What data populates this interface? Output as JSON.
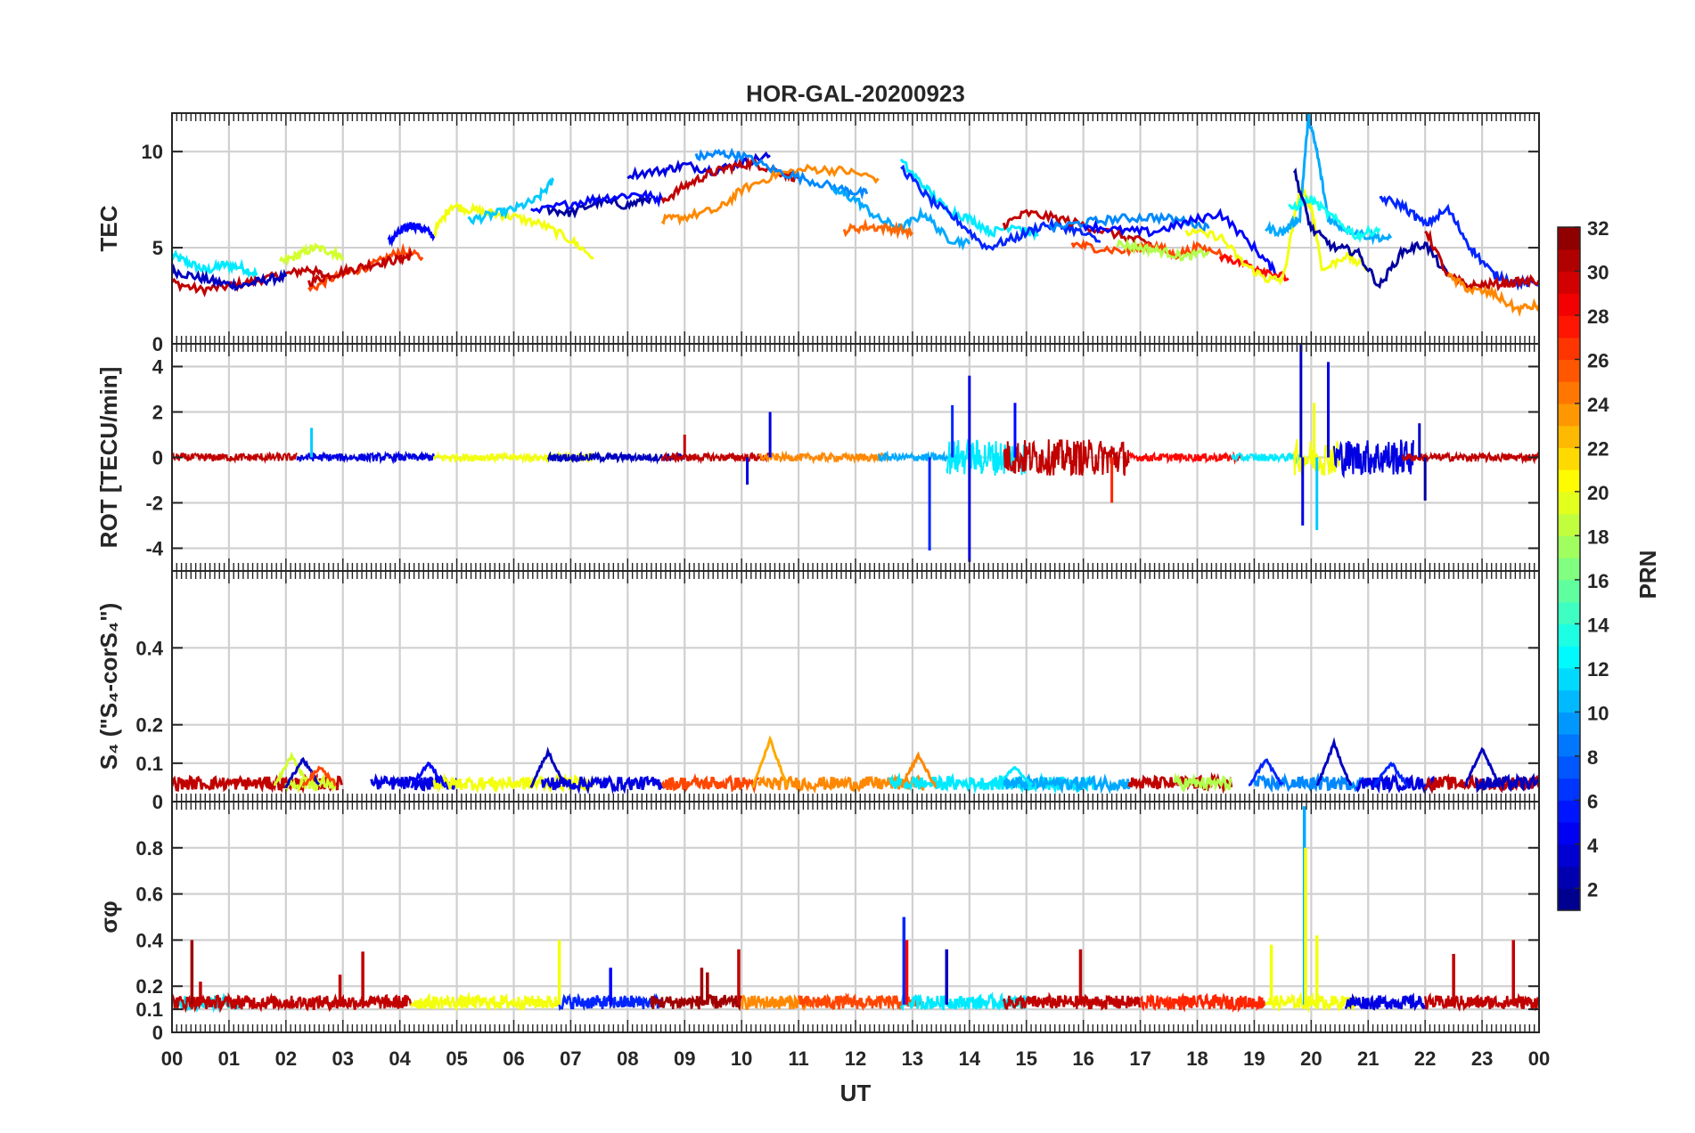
{
  "chart_data": {
    "type": "line",
    "title": "HOR-GAL-20200923",
    "xlabel": "UT",
    "xlim": [
      0,
      24
    ],
    "x_tick_labels": [
      "00",
      "01",
      "02",
      "03",
      "04",
      "05",
      "06",
      "07",
      "08",
      "09",
      "10",
      "11",
      "12",
      "13",
      "14",
      "15",
      "16",
      "17",
      "18",
      "19",
      "20",
      "21",
      "22",
      "23",
      "00"
    ],
    "grid": true,
    "colorbar": {
      "label": "PRN",
      "colormap": "jet",
      "clim": [
        1,
        32
      ],
      "ticks": [
        "2",
        "4",
        "6",
        "8",
        "10",
        "12",
        "14",
        "16",
        "18",
        "20",
        "22",
        "24",
        "26",
        "28",
        "30",
        "32"
      ]
    },
    "panels": [
      {
        "ylabel": "TEC",
        "ylim": [
          0,
          12
        ],
        "yticks": [
          "0",
          "5",
          "10"
        ],
        "ytick_values": [
          0,
          5,
          10
        ],
        "series": [
          {
            "prn": 12,
            "x": [
              0,
              0.3,
              0.6,
              0.9,
              1.2,
              1.5
            ],
            "y": [
              4.6,
              4.2,
              3.8,
              4.1,
              4.0,
              3.6
            ]
          },
          {
            "prn": 30,
            "x": [
              0,
              0.5,
              1,
              1.5,
              2,
              2.4,
              2.7
            ],
            "y": [
              3.2,
              2.8,
              3.0,
              3.3,
              3.6,
              3.9,
              3.5
            ]
          },
          {
            "prn": 3,
            "x": [
              0,
              0.4,
              0.8,
              1.2,
              1.6,
              2.0
            ],
            "y": [
              3.8,
              3.5,
              3.2,
              3.0,
              3.3,
              3.5
            ]
          },
          {
            "prn": 19,
            "x": [
              1.9,
              2.2,
              2.5,
              2.8,
              3.0
            ],
            "y": [
              4.2,
              4.6,
              5.0,
              4.8,
              4.5
            ]
          },
          {
            "prn": 26,
            "x": [
              2.4,
              2.8,
              3.2,
              3.6,
              4.0,
              4.4
            ],
            "y": [
              2.8,
              3.4,
              3.8,
              4.2,
              4.8,
              4.5
            ]
          },
          {
            "prn": 30,
            "x": [
              2.4,
              2.8,
              3.2,
              3.6,
              4.0,
              4.2
            ],
            "y": [
              3.2,
              3.6,
              3.9,
              4.2,
              4.4,
              4.6
            ]
          },
          {
            "prn": 5,
            "x": [
              3.8,
              4.0,
              4.2,
              4.4,
              4.6
            ],
            "y": [
              5.3,
              5.8,
              6.2,
              6.0,
              5.6
            ]
          },
          {
            "prn": 20,
            "x": [
              4.6,
              4.9,
              5.2,
              5.6,
              6.0,
              6.5,
              7.0,
              7.4
            ],
            "y": [
              5.8,
              7.2,
              7.0,
              6.8,
              6.6,
              6.2,
              5.4,
              4.5
            ]
          },
          {
            "prn": 11,
            "x": [
              5.2,
              5.6,
              6.0,
              6.4,
              6.7
            ],
            "y": [
              6.4,
              6.7,
              7.0,
              7.5,
              8.5
            ]
          },
          {
            "prn": 2,
            "x": [
              6.6,
              7.0,
              7.5,
              8.0,
              8.4
            ],
            "y": [
              7.0,
              6.8,
              7.4,
              7.2,
              7.6
            ]
          },
          {
            "prn": 5,
            "x": [
              6.3,
              7.0,
              7.6,
              8.2,
              8.6
            ],
            "y": [
              6.8,
              7.3,
              7.6,
              7.8,
              7.5
            ]
          },
          {
            "prn": 4,
            "x": [
              8.0,
              8.6,
              9.0,
              9.5,
              10.0,
              10.5
            ],
            "y": [
              8.8,
              9.0,
              9.3,
              9.0,
              9.4,
              9.8
            ]
          },
          {
            "prn": 30,
            "x": [
              8.6,
              9.0,
              9.4,
              9.8,
              10.2,
              10.6,
              11.0
            ],
            "y": [
              7.4,
              8.2,
              8.8,
              9.2,
              9.4,
              9.0,
              8.6
            ]
          },
          {
            "prn": 24,
            "x": [
              8.6,
              9.0,
              9.6,
              10.0,
              10.6,
              11.2,
              11.8,
              12.4
            ],
            "y": [
              6.4,
              6.6,
              7.0,
              8.0,
              8.8,
              9.1,
              9.0,
              8.6
            ]
          },
          {
            "prn": 9,
            "x": [
              9.2,
              9.6,
              10.0,
              10.6,
              11.2,
              11.8,
              12.2
            ],
            "y": [
              9.7,
              9.9,
              9.8,
              9.0,
              8.5,
              8.0,
              7.8
            ]
          },
          {
            "prn": 10,
            "x": [
              11.6,
              12.0,
              12.4,
              12.8,
              13.2,
              13.6,
              14.0
            ],
            "y": [
              8.0,
              7.5,
              6.5,
              6.0,
              6.8,
              5.5,
              5.2
            ]
          },
          {
            "prn": 25,
            "x": [
              11.8,
              12.2,
              12.6,
              13.0
            ],
            "y": [
              5.9,
              6.1,
              6.0,
              5.8
            ]
          },
          {
            "prn": 12,
            "x": [
              12.8,
              13.2,
              13.6,
              14.0,
              14.4,
              14.8,
              15.2
            ],
            "y": [
              9.5,
              8.2,
              7.0,
              6.5,
              5.8,
              6.2,
              5.6
            ]
          },
          {
            "prn": 6,
            "x": [
              12.8,
              13.3,
              13.8,
              14.3,
              14.8,
              15.3,
              15.8,
              16.3
            ],
            "y": [
              9.2,
              7.5,
              6.4,
              5.0,
              5.5,
              6.2,
              6.0,
              5.3
            ]
          },
          {
            "prn": 30,
            "x": [
              14.6,
              15.0,
              15.6,
              16.2,
              16.8,
              17.2
            ],
            "y": [
              6.2,
              6.8,
              6.5,
              6.0,
              5.5,
              5.2
            ]
          },
          {
            "prn": 26,
            "x": [
              15.8,
              16.2,
              16.8,
              17.2,
              17.6,
              18.0,
              18.6
            ],
            "y": [
              5.2,
              5.0,
              4.8,
              5.2,
              4.6,
              5.0,
              4.6
            ]
          },
          {
            "prn": 18,
            "x": [
              16.6,
              17.0,
              17.4,
              17.8,
              18.2
            ],
            "y": [
              5.2,
              5.0,
              4.8,
              4.5,
              4.8
            ]
          },
          {
            "prn": 9,
            "x": [
              15.4,
              16.0,
              16.6,
              17.2,
              17.8,
              18.2
            ],
            "y": [
              6.0,
              6.3,
              6.5,
              6.6,
              6.4,
              6.0
            ]
          },
          {
            "prn": 5,
            "x": [
              16.0,
              16.6,
              17.2,
              17.8,
              18.4,
              19.0,
              19.4
            ],
            "y": [
              6.2,
              5.9,
              5.8,
              6.3,
              6.8,
              5.0,
              3.6
            ]
          },
          {
            "prn": 28,
            "x": [
              18.4,
              18.8,
              19.2,
              19.6
            ],
            "y": [
              4.6,
              4.2,
              3.8,
              3.4
            ]
          },
          {
            "prn": 20,
            "x": [
              17.8,
              18.4,
              18.8,
              19.2,
              19.5,
              19.8,
              20.0,
              20.2,
              20.6,
              21.0
            ],
            "y": [
              5.8,
              5.6,
              4.2,
              3.4,
              3.3,
              8.0,
              7.2,
              3.8,
              4.6,
              3.9
            ]
          },
          {
            "prn": 10,
            "x": [
              19.2,
              19.5,
              19.8,
              19.95,
              20.1,
              20.3,
              20.6,
              21.0,
              21.4
            ],
            "y": [
              6.0,
              5.8,
              6.6,
              11.8,
              10.0,
              6.5,
              6.0,
              5.6,
              5.5
            ]
          },
          {
            "prn": 13,
            "x": [
              19.6,
              20.0,
              20.4,
              20.8,
              21.2
            ],
            "y": [
              7.0,
              7.5,
              6.5,
              5.6,
              6.0
            ]
          },
          {
            "prn": 2,
            "x": [
              19.7,
              20.0,
              20.4,
              20.8,
              21.2,
              21.6,
              22.0,
              22.4
            ],
            "y": [
              9.0,
              6.0,
              5.0,
              4.8,
              3.0,
              4.8,
              5.2,
              3.5
            ]
          },
          {
            "prn": 6,
            "x": [
              21.2,
              21.6,
              22.0,
              22.4,
              22.8,
              23.2,
              23.6,
              24.0
            ],
            "y": [
              7.6,
              7.2,
              6.2,
              7.0,
              5.0,
              3.6,
              3.2,
              3.1
            ]
          },
          {
            "prn": 30,
            "x": [
              22.0,
              22.4,
              22.8,
              23.2,
              23.6,
              24.0
            ],
            "y": [
              6.0,
              3.5,
              3.0,
              3.1,
              3.2,
              3.3
            ]
          },
          {
            "prn": 24,
            "x": [
              22.4,
              22.8,
              23.2,
              23.6,
              24.0
            ],
            "y": [
              3.5,
              2.8,
              2.6,
              1.8,
              2.0
            ]
          }
        ]
      },
      {
        "ylabel": "ROT [TECU/min]",
        "ylim": [
          -5,
          5
        ],
        "yticks": [
          "-4",
          "-2",
          "0",
          "2",
          "4"
        ],
        "ytick_values": [
          -4,
          -2,
          0,
          2,
          4
        ],
        "spikes": [
          {
            "prn": 11,
            "x": 2.45,
            "y": 1.3
          },
          {
            "prn": 30,
            "x": 9.0,
            "y": 1.0
          },
          {
            "prn": 4,
            "x": 10.5,
            "y": 2.0
          },
          {
            "prn": 4,
            "x": 10.1,
            "y": -1.2
          },
          {
            "prn": 6,
            "x": 13.3,
            "y": -4.1
          },
          {
            "prn": 6,
            "x": 13.7,
            "y": 2.3
          },
          {
            "prn": 4,
            "x": 14.0,
            "y": -4.6
          },
          {
            "prn": 4,
            "x": 14.0,
            "y": 3.6
          },
          {
            "prn": 5,
            "x": 14.8,
            "y": 2.4
          },
          {
            "prn": 27,
            "x": 16.5,
            "y": -2.0
          },
          {
            "prn": 3,
            "x": 19.82,
            "y": 5.0
          },
          {
            "prn": 4,
            "x": 19.85,
            "y": -3.0
          },
          {
            "prn": 4,
            "x": 20.3,
            "y": 4.2
          },
          {
            "prn": 11,
            "x": 20.1,
            "y": -3.2
          },
          {
            "prn": 20,
            "x": 20.05,
            "y": 2.4
          },
          {
            "prn": 3,
            "x": 21.9,
            "y": 1.5
          },
          {
            "prn": 2,
            "x": 22.0,
            "y": -1.9
          }
        ]
      },
      {
        "ylabel": "S₄ (\"S₄-corS₄\")",
        "ylim": [
          0,
          0.6
        ],
        "yticks": [
          "0",
          "0.1",
          "0.2",
          "0.4"
        ],
        "ytick_values": [
          0,
          0.1,
          0.2,
          0.4
        ],
        "bumps": [
          {
            "prn": 19,
            "x": 2.1,
            "y": 0.12
          },
          {
            "prn": 3,
            "x": 2.3,
            "y": 0.11
          },
          {
            "prn": 26,
            "x": 2.6,
            "y": 0.09
          },
          {
            "prn": 5,
            "x": 4.5,
            "y": 0.1
          },
          {
            "prn": 3,
            "x": 6.6,
            "y": 0.13
          },
          {
            "prn": 23,
            "x": 10.5,
            "y": 0.16
          },
          {
            "prn": 24,
            "x": 13.1,
            "y": 0.12
          },
          {
            "prn": 12,
            "x": 14.8,
            "y": 0.09
          },
          {
            "prn": 6,
            "x": 19.2,
            "y": 0.11
          },
          {
            "prn": 3,
            "x": 20.4,
            "y": 0.15
          },
          {
            "prn": 6,
            "x": 21.4,
            "y": 0.1
          },
          {
            "prn": 3,
            "x": 23.0,
            "y": 0.14
          }
        ]
      },
      {
        "ylabel": "σφ",
        "ylim": [
          0,
          1
        ],
        "yticks": [
          "0",
          "0.1",
          "0.2",
          "0.4",
          "0.6",
          "0.8"
        ],
        "ytick_values": [
          0,
          0.1,
          0.2,
          0.4,
          0.6,
          0.8
        ],
        "spikes": [
          {
            "prn": 31,
            "x": 0.35,
            "y": 0.4
          },
          {
            "prn": 30,
            "x": 0.5,
            "y": 0.22
          },
          {
            "prn": 30,
            "x": 3.35,
            "y": 0.35
          },
          {
            "prn": 30,
            "x": 2.95,
            "y": 0.25
          },
          {
            "prn": 20,
            "x": 6.8,
            "y": 0.4
          },
          {
            "prn": 5,
            "x": 7.7,
            "y": 0.28
          },
          {
            "prn": 31,
            "x": 9.3,
            "y": 0.28
          },
          {
            "prn": 31,
            "x": 9.4,
            "y": 0.26
          },
          {
            "prn": 30,
            "x": 9.95,
            "y": 0.36
          },
          {
            "prn": 6,
            "x": 12.85,
            "y": 0.5
          },
          {
            "prn": 28,
            "x": 12.9,
            "y": 0.4
          },
          {
            "prn": 3,
            "x": 13.6,
            "y": 0.36
          },
          {
            "prn": 30,
            "x": 15.95,
            "y": 0.36
          },
          {
            "prn": 20,
            "x": 19.3,
            "y": 0.38
          },
          {
            "prn": 10,
            "x": 19.88,
            "y": 0.98
          },
          {
            "prn": 20,
            "x": 19.9,
            "y": 0.8
          },
          {
            "prn": 20,
            "x": 20.1,
            "y": 0.42
          },
          {
            "prn": 30,
            "x": 22.5,
            "y": 0.34
          },
          {
            "prn": 30,
            "x": 23.55,
            "y": 0.4
          }
        ]
      }
    ]
  }
}
